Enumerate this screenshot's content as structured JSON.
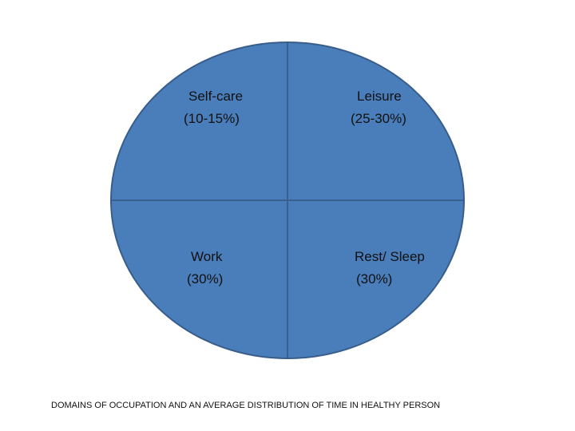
{
  "quadrants": [
    {
      "name": "Self-care",
      "value": "(10-15%)"
    },
    {
      "name": "Leisure",
      "value": "(25-30%)"
    },
    {
      "name": "Work",
      "value": "(30%)"
    },
    {
      "name": "Rest/ Sleep",
      "value": "(30%)"
    }
  ],
  "caption": "DOMAINS OF OCCUPATION AND AN AVERAGE DISTRIBUTION OF TIME IN HEALTHY PERSON",
  "colors": {
    "fill": "#4a7ebb",
    "stroke": "#385d8a",
    "divider": "#3a5f8c",
    "text": "#111111"
  }
}
